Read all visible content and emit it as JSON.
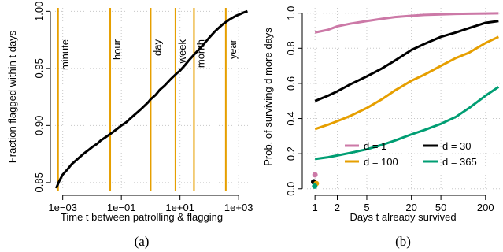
{
  "chart_data": [
    {
      "type": "line",
      "caption": "(a)",
      "xlabel": "Time t between patrolling & flagging",
      "ylabel": "Fraction flagged within t days",
      "x_scale": "log10",
      "xlim": [
        0.00055,
        2500
      ],
      "ylim": [
        0.843,
        1.003
      ],
      "x_ticks": [
        {
          "value": 0.001,
          "label": "1e−03"
        },
        {
          "value": 0.1,
          "label": "1e−01"
        },
        {
          "value": 10,
          "label": "1e+01"
        },
        {
          "value": 1000,
          "label": "1e+03"
        }
      ],
      "y_ticks": [
        {
          "value": 0.85,
          "label": "0.85"
        },
        {
          "value": 0.9,
          "label": "0.90"
        },
        {
          "value": 0.95,
          "label": "0.95"
        },
        {
          "value": 1.0,
          "label": "1.00"
        }
      ],
      "grid": true,
      "reference_lines": [
        {
          "value": 0.000694,
          "label": "minute"
        },
        {
          "value": 0.0417,
          "label": "hour"
        },
        {
          "value": 1,
          "label": "day"
        },
        {
          "value": 7,
          "label": "week"
        },
        {
          "value": 30,
          "label": "month"
        },
        {
          "value": 365,
          "label": "year"
        }
      ],
      "reference_color": "#E69F00",
      "series_color": "#000000",
      "x": [
        0.0006,
        0.00075,
        0.001,
        0.0015,
        0.002,
        0.003,
        0.005,
        0.008,
        0.01,
        0.015,
        0.02,
        0.03,
        0.05,
        0.08,
        0.1,
        0.15,
        0.2,
        0.3,
        0.5,
        0.8,
        1,
        1.5,
        2,
        3,
        5,
        8,
        10,
        15,
        20,
        30,
        50,
        80,
        100,
        150,
        200,
        300,
        500,
        800,
        1000,
        1500,
        2000
      ],
      "y": [
        0.845,
        0.851,
        0.857,
        0.862,
        0.866,
        0.87,
        0.875,
        0.879,
        0.881,
        0.884,
        0.887,
        0.89,
        0.894,
        0.898,
        0.9,
        0.903,
        0.906,
        0.91,
        0.915,
        0.92,
        0.923,
        0.927,
        0.931,
        0.935,
        0.941,
        0.946,
        0.948,
        0.953,
        0.957,
        0.962,
        0.968,
        0.974,
        0.977,
        0.982,
        0.985,
        0.989,
        0.993,
        0.996,
        0.997,
        0.999,
        1.0
      ]
    },
    {
      "type": "line",
      "caption": "(b)",
      "xlabel": "Days t already survived",
      "ylabel": "Prob. of surviving d more days",
      "x_scale": "log10",
      "xlim": [
        0.78,
        320
      ],
      "ylim": [
        -0.01,
        1.03
      ],
      "x_ticks": [
        {
          "value": 1,
          "label": "1"
        },
        {
          "value": 2,
          "label": "2"
        },
        {
          "value": 5,
          "label": "5"
        },
        {
          "value": 20,
          "label": "20"
        },
        {
          "value": 50,
          "label": "50"
        },
        {
          "value": 200,
          "label": "200"
        }
      ],
      "y_ticks": [
        {
          "value": 0.0,
          "label": "0.0"
        },
        {
          "value": 0.2,
          "label": "0.2"
        },
        {
          "value": 0.4,
          "label": "0.4"
        },
        {
          "value": 0.6,
          "label": "0.6"
        },
        {
          "value": 0.8,
          "label": "0.8"
        },
        {
          "value": 1.0,
          "label": "1.0"
        }
      ],
      "grid": true,
      "legend_position": "bottom",
      "series": [
        {
          "name": "d = 1",
          "color": "#CC79A7",
          "x": [
            1,
            1.5,
            2,
            3,
            5,
            8,
            12,
            20,
            30,
            50,
            80,
            120,
            200,
            300
          ],
          "y": [
            0.89,
            0.905,
            0.925,
            0.94,
            0.955,
            0.968,
            0.978,
            0.985,
            0.99,
            0.993,
            0.996,
            0.997,
            0.998,
            0.999
          ],
          "marker": {
            "x": 1.0,
            "y": 0.08
          }
        },
        {
          "name": "d = 30",
          "color": "#000000",
          "x": [
            1,
            1.5,
            2,
            3,
            5,
            8,
            12,
            20,
            30,
            50,
            80,
            120,
            200,
            300
          ],
          "y": [
            0.5,
            0.53,
            0.555,
            0.595,
            0.64,
            0.685,
            0.73,
            0.79,
            0.825,
            0.865,
            0.89,
            0.915,
            0.945,
            0.955
          ],
          "marker": {
            "x": 0.96,
            "y": 0.04
          }
        },
        {
          "name": "d = 100",
          "color": "#E69F00",
          "x": [
            1,
            1.5,
            2,
            3,
            5,
            8,
            12,
            20,
            30,
            50,
            80,
            120,
            200,
            300
          ],
          "y": [
            0.34,
            0.365,
            0.385,
            0.415,
            0.46,
            0.51,
            0.56,
            0.615,
            0.65,
            0.7,
            0.745,
            0.775,
            0.83,
            0.865
          ],
          "marker": {
            "x": 1.04,
            "y": 0.03
          }
        },
        {
          "name": "d = 365",
          "color": "#009E73",
          "x": [
            1,
            1.5,
            2,
            3,
            5,
            8,
            12,
            20,
            30,
            50,
            80,
            120,
            200,
            300
          ],
          "y": [
            0.17,
            0.18,
            0.19,
            0.205,
            0.225,
            0.25,
            0.275,
            0.31,
            0.335,
            0.37,
            0.41,
            0.46,
            0.53,
            0.58
          ],
          "marker": {
            "x": 0.99,
            "y": 0.015
          }
        }
      ]
    }
  ]
}
